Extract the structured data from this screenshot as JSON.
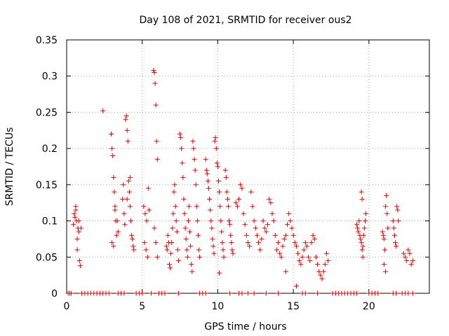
{
  "chart_data": {
    "type": "scatter",
    "title": "Day 108 of 2021, SRMTID for receiver ous2",
    "xlabel": "GPS time / hours",
    "ylabel": "SRMTID / TECUs",
    "xlim": [
      0,
      24
    ],
    "ylim": [
      0,
      0.35
    ],
    "xticks": [
      0,
      5,
      10,
      15,
      20
    ],
    "xtick_labels": [
      "0",
      "5",
      "10",
      "15",
      "20"
    ],
    "yticks": [
      0,
      0.05,
      0.1,
      0.15,
      0.2,
      0.25,
      0.3,
      0.35
    ],
    "ytick_labels": [
      "0",
      "0.05",
      "0.1",
      "0.15",
      "0.2",
      "0.25",
      "0.3",
      "0.35"
    ],
    "grid": true,
    "marker": "+",
    "color": "#e00000",
    "series": [
      {
        "name": "SRMTID",
        "points": [
          [
            0.45,
            0.095
          ],
          [
            0.5,
            0.11
          ],
          [
            0.55,
            0.105
          ],
          [
            0.6,
            0.115
          ],
          [
            0.65,
            0.1
          ],
          [
            0.7,
            0.06
          ],
          [
            0.75,
            0.09
          ],
          [
            0.8,
            0.085
          ],
          [
            0.85,
            0.045
          ],
          [
            0.9,
            0.038
          ],
          [
            0.95,
            0.09
          ],
          [
            0.6,
            0.12
          ],
          [
            0.7,
            0.075
          ],
          [
            0.8,
            0.1
          ],
          [
            2.4,
            0.252
          ],
          [
            2.95,
            0.22
          ],
          [
            3.0,
            0.2
          ],
          [
            3.05,
            0.19
          ],
          [
            3.1,
            0.16
          ],
          [
            3.15,
            0.14
          ],
          [
            3.2,
            0.12
          ],
          [
            3.25,
            0.1
          ],
          [
            3.3,
            0.08
          ],
          [
            3.0,
            0.07
          ],
          [
            3.1,
            0.065
          ],
          [
            3.2,
            0.115
          ],
          [
            3.35,
            0.1
          ],
          [
            3.4,
            0.085
          ],
          [
            3.7,
            0.13
          ],
          [
            3.75,
            0.15
          ],
          [
            3.8,
            0.11
          ],
          [
            3.85,
            0.095
          ],
          [
            3.9,
            0.24
          ],
          [
            3.95,
            0.245
          ],
          [
            4.0,
            0.225
          ],
          [
            4.05,
            0.21
          ],
          [
            4.1,
            0.155
          ],
          [
            4.15,
            0.14
          ],
          [
            4.2,
            0.12
          ],
          [
            4.25,
            0.1
          ],
          [
            4.3,
            0.08
          ],
          [
            4.35,
            0.075
          ],
          [
            4.4,
            0.065
          ],
          [
            4.45,
            0.06
          ],
          [
            4.0,
            0.13
          ],
          [
            4.2,
            0.16
          ],
          [
            5.1,
            0.12
          ],
          [
            5.2,
            0.11
          ],
          [
            5.3,
            0.1
          ],
          [
            5.4,
            0.145
          ],
          [
            5.15,
            0.07
          ],
          [
            5.25,
            0.06
          ],
          [
            5.35,
            0.05
          ],
          [
            5.45,
            0.115
          ],
          [
            5.75,
            0.308
          ],
          [
            5.8,
            0.305
          ],
          [
            5.85,
            0.29
          ],
          [
            5.9,
            0.26
          ],
          [
            5.95,
            0.21
          ],
          [
            6.0,
            0.185
          ],
          [
            5.8,
            0.09
          ],
          [
            5.9,
            0.07
          ],
          [
            6.0,
            0.05
          ],
          [
            6.6,
            0.065
          ],
          [
            6.65,
            0.06
          ],
          [
            6.7,
            0.08
          ],
          [
            6.75,
            0.07
          ],
          [
            6.8,
            0.04
          ],
          [
            6.85,
            0.035
          ],
          [
            6.9,
            0.055
          ],
          [
            6.95,
            0.07
          ],
          [
            7.0,
            0.09
          ],
          [
            7.05,
            0.11
          ],
          [
            7.1,
            0.14
          ],
          [
            7.15,
            0.15
          ],
          [
            7.2,
            0.12
          ],
          [
            7.25,
            0.1
          ],
          [
            7.3,
            0.085
          ],
          [
            7.35,
            0.06
          ],
          [
            7.4,
            0.045
          ],
          [
            7.5,
            0.22
          ],
          [
            7.55,
            0.215
          ],
          [
            7.6,
            0.2
          ],
          [
            7.65,
            0.18
          ],
          [
            7.7,
            0.16
          ],
          [
            7.75,
            0.13
          ],
          [
            7.8,
            0.11
          ],
          [
            7.85,
            0.09
          ],
          [
            7.9,
            0.075
          ],
          [
            7.95,
            0.06
          ],
          [
            8.0,
            0.05
          ],
          [
            8.05,
            0.1
          ],
          [
            8.1,
            0.12
          ],
          [
            8.15,
            0.085
          ],
          [
            8.2,
            0.065
          ],
          [
            8.25,
            0.04
          ],
          [
            8.3,
            0.03
          ],
          [
            8.35,
            0.21
          ],
          [
            8.4,
            0.2
          ],
          [
            8.45,
            0.185
          ],
          [
            8.5,
            0.17
          ],
          [
            8.55,
            0.15
          ],
          [
            8.6,
            0.12
          ],
          [
            8.65,
            0.1
          ],
          [
            8.7,
            0.08
          ],
          [
            8.75,
            0.06
          ],
          [
            8.8,
            0.05
          ],
          [
            9.2,
            0.185
          ],
          [
            9.25,
            0.17
          ],
          [
            9.3,
            0.165
          ],
          [
            9.35,
            0.155
          ],
          [
            9.4,
            0.145
          ],
          [
            9.45,
            0.13
          ],
          [
            9.5,
            0.115
          ],
          [
            9.55,
            0.1
          ],
          [
            9.6,
            0.09
          ],
          [
            9.65,
            0.075
          ],
          [
            9.7,
            0.065
          ],
          [
            9.75,
            0.055
          ],
          [
            9.8,
            0.21
          ],
          [
            9.85,
            0.215
          ],
          [
            9.9,
            0.2
          ],
          [
            9.95,
            0.18
          ],
          [
            10.0,
            0.175
          ],
          [
            10.05,
            0.155
          ],
          [
            10.1,
            0.14
          ],
          [
            10.15,
            0.12
          ],
          [
            10.2,
            0.1
          ],
          [
            10.25,
            0.085
          ],
          [
            10.3,
            0.07
          ],
          [
            10.35,
            0.06
          ],
          [
            10.4,
            0.05
          ],
          [
            10.1,
            0.028
          ],
          [
            10.5,
            0.17
          ],
          [
            10.55,
            0.16
          ],
          [
            10.6,
            0.14
          ],
          [
            10.65,
            0.13
          ],
          [
            10.7,
            0.12
          ],
          [
            10.75,
            0.1
          ],
          [
            10.8,
            0.095
          ],
          [
            10.85,
            0.08
          ],
          [
            10.9,
            0.07
          ],
          [
            10.95,
            0.06
          ],
          [
            11.0,
            0.055
          ],
          [
            11.2,
            0.125
          ],
          [
            11.3,
            0.12
          ],
          [
            11.4,
            0.13
          ],
          [
            11.5,
            0.15
          ],
          [
            11.6,
            0.145
          ],
          [
            11.7,
            0.11
          ],
          [
            11.8,
            0.095
          ],
          [
            11.9,
            0.08
          ],
          [
            12.0,
            0.07
          ],
          [
            12.1,
            0.065
          ],
          [
            12.2,
            0.14
          ],
          [
            12.3,
            0.12
          ],
          [
            12.4,
            0.1
          ],
          [
            12.5,
            0.09
          ],
          [
            12.6,
            0.08
          ],
          [
            12.7,
            0.07
          ],
          [
            12.8,
            0.06
          ],
          [
            12.9,
            0.075
          ],
          [
            13.0,
            0.1
          ],
          [
            13.1,
            0.09
          ],
          [
            13.2,
            0.085
          ],
          [
            13.3,
            0.095
          ],
          [
            13.4,
            0.13
          ],
          [
            13.5,
            0.125
          ],
          [
            13.6,
            0.11
          ],
          [
            13.7,
            0.1
          ],
          [
            13.8,
            0.08
          ],
          [
            13.9,
            0.06
          ],
          [
            14.0,
            0.07
          ],
          [
            14.1,
            0.055
          ],
          [
            14.2,
            0.05
          ],
          [
            14.3,
            0.065
          ],
          [
            14.4,
            0.075
          ],
          [
            14.5,
            0.08
          ],
          [
            14.6,
            0.095
          ],
          [
            14.7,
            0.11
          ],
          [
            14.8,
            0.1
          ],
          [
            14.9,
            0.09
          ],
          [
            15.0,
            0.08
          ],
          [
            15.1,
            0.07
          ],
          [
            15.2,
            0.065
          ],
          [
            15.3,
            0.055
          ],
          [
            15.4,
            0.045
          ],
          [
            15.5,
            0.04
          ],
          [
            15.6,
            0.05
          ],
          [
            15.7,
            0.06
          ],
          [
            15.8,
            0.07
          ],
          [
            15.9,
            0.065
          ],
          [
            16.0,
            0.05
          ],
          [
            16.1,
            0.045
          ],
          [
            16.2,
            0.07
          ],
          [
            16.3,
            0.08
          ],
          [
            16.4,
            0.075
          ],
          [
            16.5,
            0.05
          ],
          [
            16.6,
            0.04
          ],
          [
            16.7,
            0.03
          ],
          [
            16.8,
            0.025
          ],
          [
            16.9,
            0.02
          ],
          [
            17.0,
            0.03
          ],
          [
            17.1,
            0.04
          ],
          [
            17.2,
            0.055
          ],
          [
            17.3,
            0.045
          ],
          [
            14.5,
            0.03
          ],
          [
            15.2,
            0.01
          ],
          [
            19.2,
            0.095
          ],
          [
            19.25,
            0.09
          ],
          [
            19.3,
            0.085
          ],
          [
            19.35,
            0.1
          ],
          [
            19.4,
            0.08
          ],
          [
            19.45,
            0.075
          ],
          [
            19.5,
            0.07
          ],
          [
            19.55,
            0.06
          ],
          [
            19.6,
            0.065
          ],
          [
            19.65,
            0.08
          ],
          [
            19.7,
            0.09
          ],
          [
            19.75,
            0.1
          ],
          [
            19.8,
            0.11
          ],
          [
            19.5,
            0.14
          ],
          [
            19.55,
            0.13
          ],
          [
            19.6,
            0.05
          ],
          [
            20.9,
            0.085
          ],
          [
            20.95,
            0.08
          ],
          [
            21.0,
            0.075
          ],
          [
            21.05,
            0.06
          ],
          [
            21.1,
            0.12
          ],
          [
            21.15,
            0.135
          ],
          [
            21.2,
            0.11
          ],
          [
            21.25,
            0.09
          ],
          [
            21.0,
            0.04
          ],
          [
            21.1,
            0.03
          ],
          [
            21.6,
            0.1
          ],
          [
            21.65,
            0.09
          ],
          [
            21.7,
            0.08
          ],
          [
            21.75,
            0.07
          ],
          [
            21.8,
            0.065
          ],
          [
            21.85,
            0.12
          ],
          [
            21.9,
            0.115
          ],
          [
            21.95,
            0.1
          ],
          [
            22.3,
            0.055
          ],
          [
            22.4,
            0.05
          ],
          [
            22.5,
            0.045
          ],
          [
            22.6,
            0.06
          ],
          [
            22.7,
            0.055
          ],
          [
            22.8,
            0.04
          ],
          [
            22.9,
            0.045
          ],
          [
            0.1,
            0
          ],
          [
            0.2,
            0
          ],
          [
            0.3,
            0
          ],
          [
            1.0,
            0
          ],
          [
            1.2,
            0
          ],
          [
            1.4,
            0
          ],
          [
            1.6,
            0
          ],
          [
            1.8,
            0
          ],
          [
            2.0,
            0
          ],
          [
            2.2,
            0
          ],
          [
            2.4,
            0
          ],
          [
            2.6,
            0
          ],
          [
            2.8,
            0
          ],
          [
            3.4,
            0
          ],
          [
            3.6,
            0
          ],
          [
            3.8,
            0
          ],
          [
            4.6,
            0
          ],
          [
            4.8,
            0
          ],
          [
            5.0,
            0
          ],
          [
            5.6,
            0
          ],
          [
            6.1,
            0
          ],
          [
            6.3,
            0
          ],
          [
            6.5,
            0
          ],
          [
            7.4,
            0
          ],
          [
            8.8,
            0
          ],
          [
            9.0,
            0
          ],
          [
            9.2,
            0
          ],
          [
            10.8,
            0
          ],
          [
            11.4,
            0
          ],
          [
            11.6,
            0
          ],
          [
            12.0,
            0
          ],
          [
            12.4,
            0
          ],
          [
            13.2,
            0
          ],
          [
            14.0,
            0
          ],
          [
            15.6,
            0
          ],
          [
            15.8,
            0
          ],
          [
            16.6,
            0
          ],
          [
            17.6,
            0
          ],
          [
            17.8,
            0
          ],
          [
            18.0,
            0
          ],
          [
            18.2,
            0
          ],
          [
            18.4,
            0
          ],
          [
            18.6,
            0
          ],
          [
            18.8,
            0
          ],
          [
            19.0,
            0
          ],
          [
            19.2,
            0
          ],
          [
            20.0,
            0
          ],
          [
            20.2,
            0
          ],
          [
            20.4,
            0
          ],
          [
            20.6,
            0
          ],
          [
            21.6,
            0
          ],
          [
            21.8,
            0
          ],
          [
            22.2,
            0
          ],
          [
            22.4,
            0
          ],
          [
            22.6,
            0
          ],
          [
            22.9,
            0
          ]
        ]
      }
    ]
  }
}
